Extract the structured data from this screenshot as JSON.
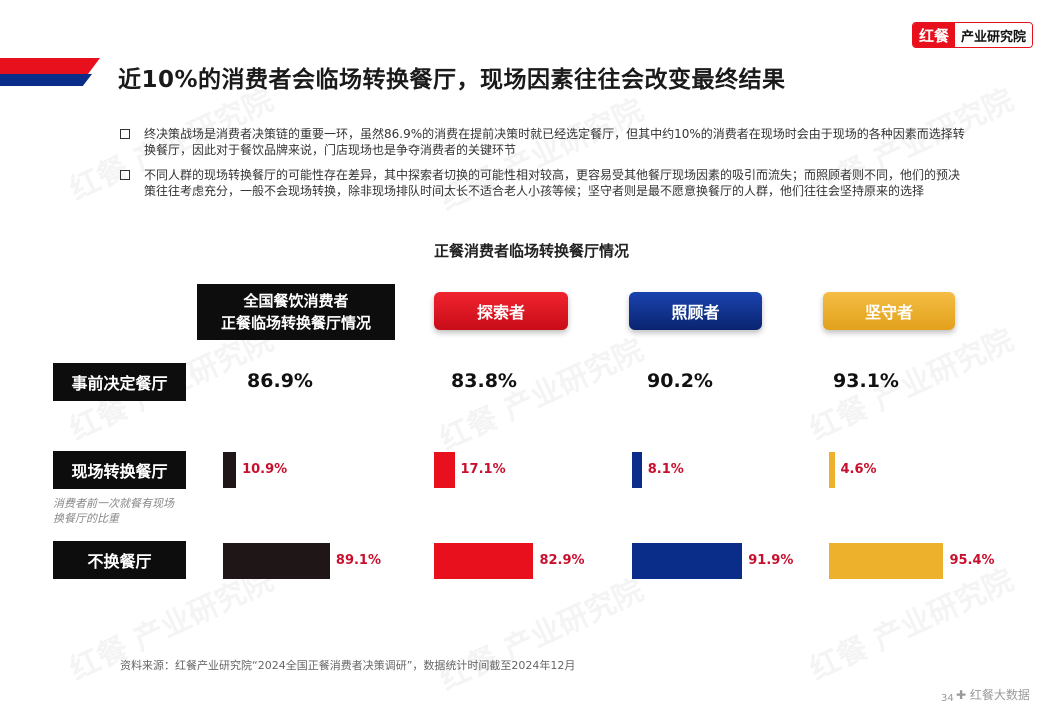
{
  "brand": {
    "logo": "红餐",
    "name": "产业研究院"
  },
  "title": "近10%的消费者会临场转换餐厅，现场因素往往会改变最终结果",
  "bullets": [
    "终决策战场是消费者决策链的重要一环，虽然86.9%的消费在提前决策时就已经选定餐厅，但其中约10%的消费者在现场时会由于现场的各种因素而选择转换餐厅，因此对于餐饮品牌来说，门店现场也是争夺消费者的关键环节",
    "不同人群的现场转换餐厅的可能性存在差异，其中探索者切换的可能性相对较高，更容易受其他餐厅现场因素的吸引而流失；而照顾者则不同，他们的预决策往往考虑充分，一般不会现场转换，除非现场排队时间太长不适合老人小孩等候；坚守者则是最不愿意换餐厅的人群，他们往往会坚持原来的选择"
  ],
  "chart_data": {
    "type": "bar",
    "title": "正餐消费者临场转换餐厅情况",
    "categories": [
      "全国餐饮消费者正餐临场转换餐厅情况",
      "探索者",
      "照顾者",
      "坚守者"
    ],
    "category_lines": [
      "全国餐饮消费者",
      "正餐临场转换餐厅情况"
    ],
    "rows": [
      "事前决定餐厅",
      "现场转换餐厅",
      "不换餐厅"
    ],
    "row_note": [
      "消费者前一次就餐有现场",
      "换餐厅的比重"
    ],
    "series": [
      {
        "name": "事前决定餐厅",
        "values": [
          86.9,
          83.8,
          90.2,
          93.1
        ],
        "labels": [
          "86.9%",
          "83.8%",
          "90.2%",
          "93.1%"
        ]
      },
      {
        "name": "现场转换餐厅",
        "values": [
          10.9,
          17.1,
          8.1,
          4.6
        ],
        "labels": [
          "10.9%",
          "17.1%",
          "8.1%",
          "4.6%"
        ]
      },
      {
        "name": "不换餐厅",
        "values": [
          89.1,
          82.9,
          91.9,
          95.4
        ],
        "labels": [
          "89.1%",
          "82.9%",
          "91.9%",
          "95.4%"
        ]
      }
    ],
    "colors": [
      "#1e1617",
      "#e8101c",
      "#0b2d8a",
      "#eeb12c"
    ],
    "header_colors": [
      "#0d0d0d",
      "#e8101c",
      "#0b2d8a",
      "#eeb12c"
    ],
    "label_color": "#c8102e"
  },
  "source": "资料来源：红餐产业研究院“2024全国正餐消费者决策调研”，数据统计时间截至2024年12月",
  "page_number": "34",
  "footer_brand": "✚ 红餐大数据",
  "watermark": "红餐 产业研究院"
}
